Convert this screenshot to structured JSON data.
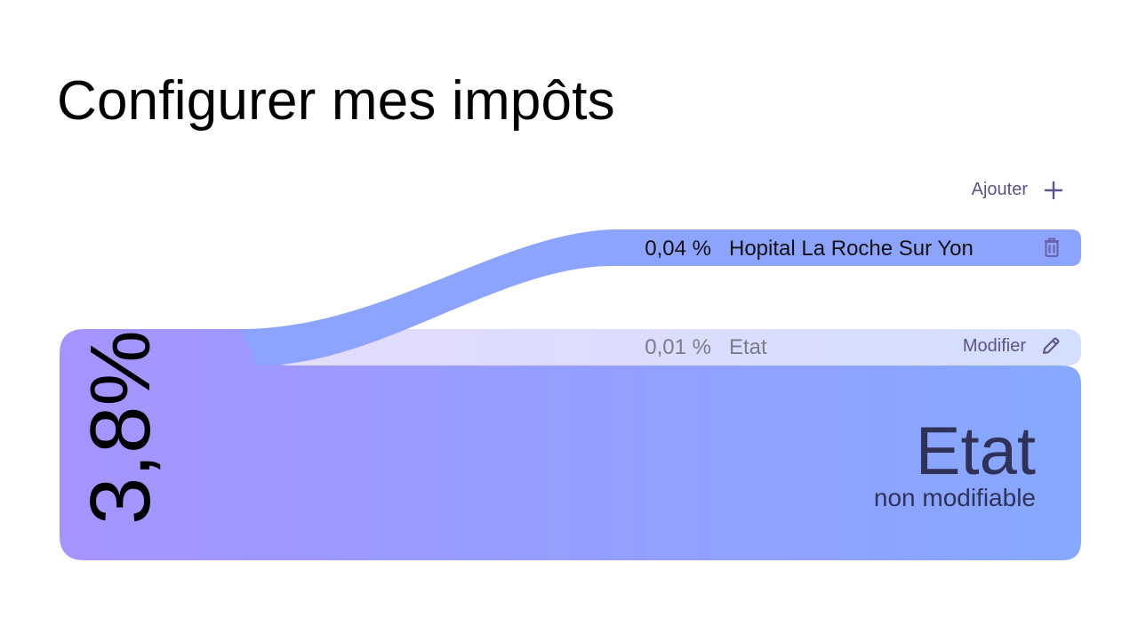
{
  "page": {
    "title": "Configurer mes impôts"
  },
  "toolbar": {
    "add_label": "Ajouter"
  },
  "allocations": [
    {
      "percent": "0,04 %",
      "name": "Hopital La Roche Sur Yon",
      "action_icon": "trash-icon"
    },
    {
      "percent": "0,01 %",
      "name": "Etat",
      "action_label": "Modifier",
      "action_icon": "pencil-icon"
    }
  ],
  "total": {
    "percent": "3,8%",
    "recipient": "Etat",
    "note": "non modifiable"
  },
  "colors": {
    "gradient_start": "#a594ff",
    "gradient_end": "#86a8ff",
    "band": "#8da4ff",
    "band_light": "#d9dcfb",
    "accent": "#5e528a"
  }
}
